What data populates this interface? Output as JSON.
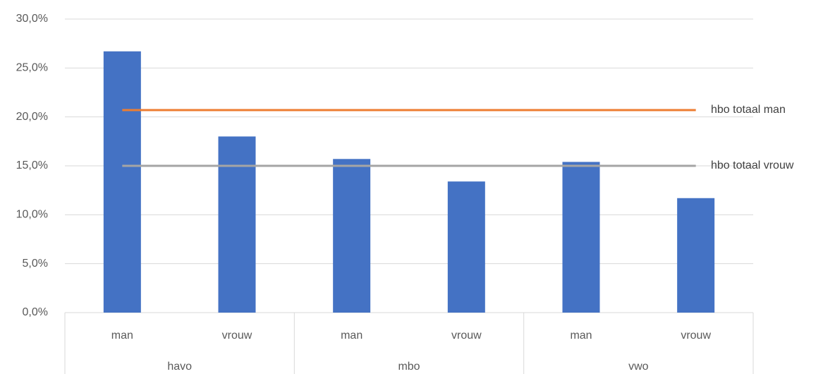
{
  "chart_data": {
    "type": "bar",
    "categories": [
      "man",
      "vrouw",
      "man",
      "vrouw",
      "man",
      "vrouw"
    ],
    "groups": [
      "havo",
      "mbo",
      "vwo"
    ],
    "values": [
      26.7,
      18.0,
      15.7,
      13.4,
      15.4,
      11.7
    ],
    "color": "#4472c4",
    "reference_lines": [
      {
        "name": "hbo totaal man",
        "value": 20.7,
        "color": "#ed7d31"
      },
      {
        "name": "hbo totaal vrouw",
        "value": 15.0,
        "color": "#a5a5a5"
      }
    ],
    "ylim": [
      0,
      30
    ],
    "yticks": [
      {
        "value": 0,
        "label": "0,0%"
      },
      {
        "value": 5,
        "label": "5,0%"
      },
      {
        "value": 10,
        "label": "10,0%"
      },
      {
        "value": 15,
        "label": "15,0%"
      },
      {
        "value": 20,
        "label": "20,0%"
      },
      {
        "value": 25,
        "label": "25,0%"
      },
      {
        "value": 30,
        "label": "30,0%"
      }
    ],
    "grid": true
  }
}
